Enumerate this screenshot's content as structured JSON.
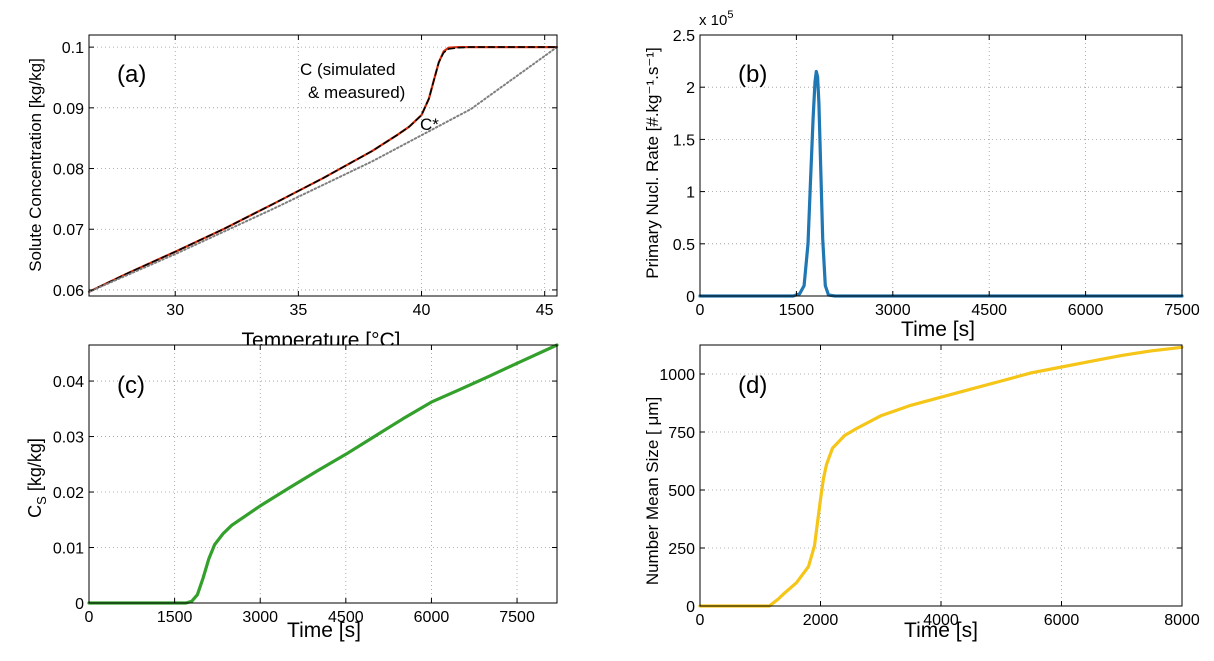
{
  "chart_data": [
    {
      "type": "line",
      "panel_label": "(a)",
      "xlabel": "Temperature  [°C]",
      "ylabel": "Solute Concentration  [kg/kg]",
      "xlim": [
        26.5,
        45.5
      ],
      "ylim": [
        0.059,
        0.102
      ],
      "xticks": [
        30,
        35,
        40,
        45
      ],
      "xtick_labels": [
        "30",
        "35",
        "40",
        "45"
      ],
      "yticks": [
        0.06,
        0.07,
        0.08,
        0.09,
        0.1
      ],
      "ytick_labels": [
        "0.06",
        "0.07",
        "0.08",
        "0.09",
        "0.1"
      ],
      "grid": true,
      "annotations": [
        "C (simulated",
        "& measured)",
        "C*"
      ],
      "series": [
        {
          "role": "C simulated",
          "color": "#d62d0a",
          "style": "solid",
          "x": [
            26.5,
            28,
            30,
            32,
            34,
            36,
            38,
            39,
            39.5,
            40,
            40.3,
            40.5,
            40.7,
            40.9,
            41.1,
            41.5,
            42,
            45.5
          ],
          "y": [
            0.0597,
            0.0626,
            0.0663,
            0.0701,
            0.0742,
            0.0784,
            0.0829,
            0.0855,
            0.0869,
            0.0888,
            0.0915,
            0.0945,
            0.0975,
            0.0993,
            0.0999,
            0.1,
            0.1,
            0.1
          ]
        },
        {
          "role": "C measured",
          "color": "#000000",
          "style": "dashed",
          "x": [
            26.5,
            28,
            30,
            32,
            34,
            36,
            38,
            39,
            39.5,
            40,
            40.3,
            40.5,
            40.7,
            40.9,
            41.1,
            41.5,
            42,
            45.5
          ],
          "y": [
            0.0597,
            0.0626,
            0.0663,
            0.0701,
            0.0742,
            0.0784,
            0.0829,
            0.0855,
            0.0869,
            0.0888,
            0.0915,
            0.0945,
            0.0975,
            0.0991,
            0.0997,
            0.0999,
            0.1,
            0.1
          ]
        },
        {
          "role": "C*",
          "color": "#7f7f7f",
          "style": "dotted",
          "x": [
            26.5,
            30,
            34,
            38,
            42,
            45.5
          ],
          "y": [
            0.0597,
            0.0659,
            0.0734,
            0.0812,
            0.0898,
            0.1
          ]
        }
      ]
    },
    {
      "type": "line",
      "panel_label": "(b)",
      "xlabel": "Time [s]",
      "ylabel": "Primary Nucl. Rate  [#.kg⁻¹.s⁻¹]",
      "exponent_label": "x 10⁵",
      "xlim": [
        0,
        7500
      ],
      "ylim": [
        0,
        2.5
      ],
      "xticks": [
        0,
        1500,
        3000,
        4500,
        6000,
        7500
      ],
      "xtick_labels": [
        "0",
        "1500",
        "3000",
        "4500",
        "6000",
        "7500"
      ],
      "yticks": [
        0,
        0.5,
        1,
        1.5,
        2,
        2.5
      ],
      "ytick_labels": [
        "0",
        "0.5",
        "1",
        "1.5",
        "2",
        "2.5"
      ],
      "grid": true,
      "series": [
        {
          "color": "#1f77b4",
          "style": "solid",
          "x": [
            0,
            1450,
            1550,
            1620,
            1680,
            1720,
            1760,
            1790,
            1810,
            1830,
            1850,
            1880,
            1910,
            1950,
            2000,
            2100,
            7500
          ],
          "y": [
            0,
            0,
            0.02,
            0.1,
            0.5,
            1.1,
            1.7,
            2.05,
            2.15,
            2.1,
            1.85,
            1.2,
            0.55,
            0.1,
            0.01,
            0,
            0
          ]
        }
      ]
    },
    {
      "type": "line",
      "panel_label": "(c)",
      "xlabel": "Time  [s]",
      "ylabel_main": "C",
      "ylabel_sub": "S",
      "ylabel_rest": "  [kg/kg]",
      "xlim": [
        0,
        8200
      ],
      "ylim": [
        0,
        0.0465
      ],
      "xticks": [
        0,
        1500,
        3000,
        4500,
        6000,
        7500
      ],
      "xtick_labels": [
        "0",
        "1500",
        "3000",
        "4500",
        "6000",
        "7500"
      ],
      "yticks": [
        0,
        0.01,
        0.02,
        0.03,
        0.04
      ],
      "ytick_labels": [
        "0",
        "0.01",
        "0.02",
        "0.03",
        "0.04"
      ],
      "grid": true,
      "series": [
        {
          "color": "#33a02c",
          "style": "solid",
          "x": [
            0,
            1700,
            1800,
            1900,
            2000,
            2100,
            2200,
            2350,
            2500,
            3000,
            3500,
            4000,
            4500,
            5000,
            5500,
            6000,
            6500,
            7000,
            7500,
            8200
          ],
          "y": [
            0,
            0,
            0.0003,
            0.0015,
            0.0045,
            0.008,
            0.0105,
            0.0125,
            0.014,
            0.0175,
            0.0207,
            0.0238,
            0.0268,
            0.03,
            0.0332,
            0.0362,
            0.0385,
            0.0408,
            0.0432,
            0.0465
          ]
        }
      ]
    },
    {
      "type": "line",
      "panel_label": "(d)",
      "xlabel": "Time [s]",
      "ylabel": "Number Mean Size [ μm]",
      "xlim": [
        0,
        8000
      ],
      "ylim": [
        0,
        1125
      ],
      "xticks": [
        0,
        2000,
        4000,
        6000,
        8000
      ],
      "xtick_labels": [
        "0",
        "2000",
        "4000",
        "6000",
        "8000"
      ],
      "yticks": [
        0,
        250,
        500,
        750,
        1000
      ],
      "ytick_labels": [
        "0",
        "250",
        "500",
        "750",
        "1000"
      ],
      "grid": true,
      "series": [
        {
          "color": "#f5c518",
          "style": "solid",
          "x": [
            0,
            1150,
            1300,
            1400,
            1600,
            1800,
            1900,
            1950,
            2000,
            2050,
            2100,
            2200,
            2400,
            2600,
            3000,
            3500,
            4000,
            4500,
            5000,
            5500,
            6000,
            6500,
            7000,
            7500,
            8000
          ],
          "y": [
            0,
            0,
            30,
            55,
            100,
            170,
            260,
            360,
            460,
            550,
            610,
            680,
            735,
            765,
            820,
            865,
            900,
            935,
            970,
            1005,
            1030,
            1055,
            1080,
            1100,
            1115
          ]
        }
      ]
    }
  ]
}
